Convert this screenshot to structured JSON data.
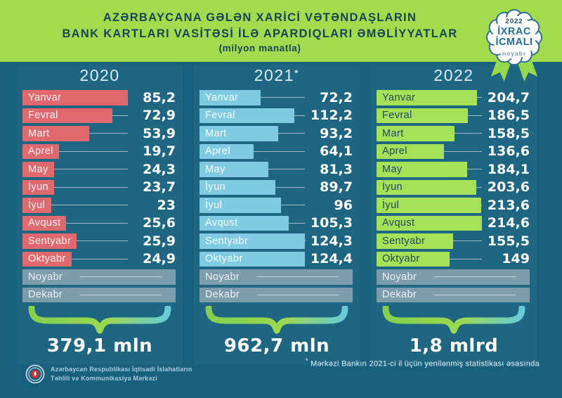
{
  "header": {
    "title_line1": "AZƏRBAYCANA GƏLƏN XARİCİ VƏTƏNDAŞLARIN",
    "title_line2": "BANK KARTLARI VASİTƏSİ İLƏ APARDIQLARI ƏMƏLİYYATLAR",
    "subtitle": "(milyon manatla)"
  },
  "badge": {
    "year": "2022",
    "title_line1": "İXRAC",
    "title_line2": "İCMALI",
    "month": "noyabr"
  },
  "columns": [
    {
      "year": "2020",
      "year_suffix": "",
      "bar_color": "#E0696E",
      "label_color": "rgba(255,255,255,0.92)",
      "total": "379,1 mln",
      "months": [
        {
          "label": "Yanvar",
          "display": "85,2",
          "value": 85.2
        },
        {
          "label": "Fevral",
          "display": "72,9",
          "value": 72.9
        },
        {
          "label": "Mart",
          "display": "53,9",
          "value": 53.9
        },
        {
          "label": "Aprel",
          "display": "19,7",
          "value": 19.7
        },
        {
          "label": "May",
          "display": "24,3",
          "value": 24.3
        },
        {
          "label": "İyun",
          "display": "23,7",
          "value": 23.7
        },
        {
          "label": "İyul",
          "display": "23",
          "value": 23
        },
        {
          "label": "Avqust",
          "display": "25,6",
          "value": 25.6
        },
        {
          "label": "Sentyabr",
          "display": "25,9",
          "value": 25.9
        },
        {
          "label": "Oktyabr",
          "display": "24,9",
          "value": 24.9
        }
      ],
      "inactive_months": [
        "Noyabr",
        "Dekabr"
      ]
    },
    {
      "year": "2021",
      "year_suffix": "*",
      "bar_color": "#7FCBE2",
      "label_color": "rgba(255,255,255,0.95)",
      "total": "962,7 mln",
      "months": [
        {
          "label": "Yanvar",
          "display": "72,2",
          "value": 72.2
        },
        {
          "label": "Fevral",
          "display": "112,2",
          "value": 112.2
        },
        {
          "label": "Mart",
          "display": "93,2",
          "value": 93.2
        },
        {
          "label": "Aprel",
          "display": "64,1",
          "value": 64.1
        },
        {
          "label": "May",
          "display": "81,3",
          "value": 81.3
        },
        {
          "label": "İyun",
          "display": "89,7",
          "value": 89.7
        },
        {
          "label": "İyul",
          "display": "96",
          "value": 96
        },
        {
          "label": "Avqust",
          "display": "105,3",
          "value": 105.3
        },
        {
          "label": "Sentyabr",
          "display": "124,3",
          "value": 124.3
        },
        {
          "label": "Oktyabr",
          "display": "124,4",
          "value": 124.4
        }
      ],
      "inactive_months": [
        "Noyabr",
        "Dekabr"
      ]
    },
    {
      "year": "2022",
      "year_suffix": "",
      "bar_color": "#A7E158",
      "label_color": "#1C4A5C",
      "total": "1,8 mlrd",
      "months": [
        {
          "label": "Yanvar",
          "display": "204,7",
          "value": 204.7
        },
        {
          "label": "Fevral",
          "display": "186,5",
          "value": 186.5
        },
        {
          "label": "Mart",
          "display": "158,5",
          "value": 158.5
        },
        {
          "label": "Aprel",
          "display": "136,6",
          "value": 136.6
        },
        {
          "label": "May",
          "display": "184,1",
          "value": 184.1
        },
        {
          "label": "İyun",
          "display": "203,6",
          "value": 203.6
        },
        {
          "label": "İyul",
          "display": "213,6",
          "value": 213.6
        },
        {
          "label": "Avqust",
          "display": "214,6",
          "value": 214.6
        },
        {
          "label": "Sentyabr",
          "display": "155,5",
          "value": 155.5
        },
        {
          "label": "Oktyabr",
          "display": "149",
          "value": 149
        }
      ],
      "inactive_months": [
        "Noyabr",
        "Dekabr"
      ]
    }
  ],
  "footnote": {
    "star": "*",
    "text": " Mərkəzi Bankın 2021-ci il üçün yenilənmiş statistikası əsasında"
  },
  "footer_org": {
    "line1": "Azərbaycan Respublikası İqtisadi İslahatların",
    "line2": "Təhlili və Kommunikasiya Mərkəzi"
  },
  "colors": {
    "background_teal": "#17617F",
    "header_green": "#A2DC4E",
    "title_navy": "#1A4556",
    "bar_2020": "#E0696E",
    "bar_2021": "#7FCBE2",
    "bar_2022": "#A7E158",
    "bar_inactive": "#7E9DAC",
    "brace_gradient_left": "#86CF4B",
    "brace_gradient_right": "#67CBD8",
    "value_text": "#FFFFFF"
  },
  "chart_data": {
    "type": "bar",
    "title": "AZƏRBAYCANA GƏLƏN XARİCİ VƏTƏNDAŞLARIN BANK KARTLARI VASİTƏSİ İLƏ APARDIQLARI ƏMƏLİYYATLAR",
    "unit": "milyon manatla",
    "orientation": "horizontal",
    "categories": [
      "Yanvar",
      "Fevral",
      "Mart",
      "Aprel",
      "May",
      "İyun",
      "İyul",
      "Avqust",
      "Sentyabr",
      "Oktyabr"
    ],
    "no_data_categories": [
      "Noyabr",
      "Dekabr"
    ],
    "series": [
      {
        "name": "2020",
        "values": [
          85.2,
          72.9,
          53.9,
          19.7,
          24.3,
          23.7,
          23,
          25.6,
          25.9,
          24.9
        ],
        "total_label": "379,1 mln"
      },
      {
        "name": "2021*",
        "values": [
          72.2,
          112.2,
          93.2,
          64.1,
          81.3,
          89.7,
          96,
          105.3,
          124.3,
          124.4
        ],
        "total_label": "962,7 mln"
      },
      {
        "name": "2022",
        "values": [
          204.7,
          186.5,
          158.5,
          136.6,
          184.1,
          203.6,
          213.6,
          214.6,
          155.5,
          149
        ],
        "total_label": "1,8 mlrd"
      }
    ],
    "footnote": "* Mərkəzi Bankın 2021-ci il üçün yenilənmiş statistikası əsasında"
  }
}
